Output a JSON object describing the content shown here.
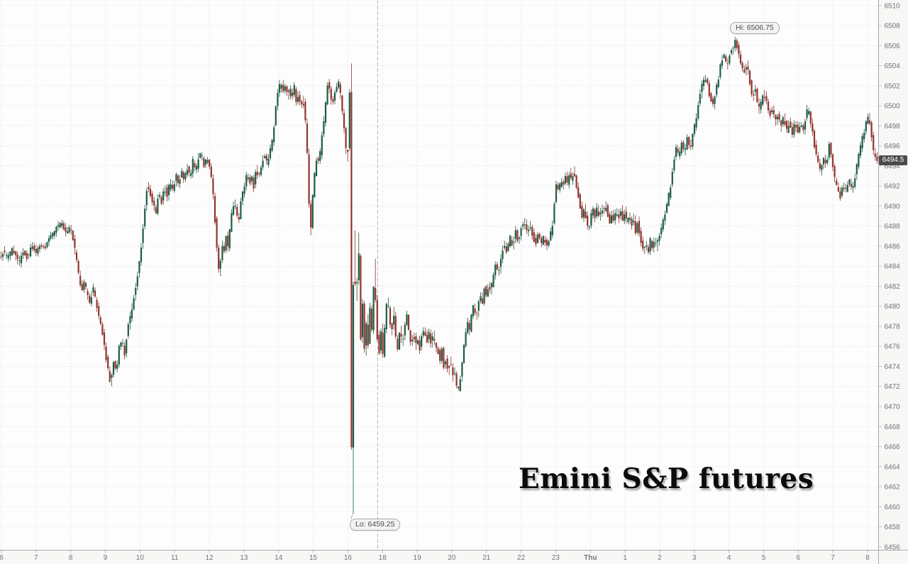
{
  "title": {
    "text": "Emini S&P futures"
  },
  "chart_data": {
    "type": "candlestick",
    "instrument": "Emini S&P futures",
    "x_axis": {
      "tick_labels": [
        "6",
        "7",
        "8",
        "9",
        "10",
        "11",
        "12",
        "13",
        "14",
        "15",
        "16",
        "18",
        "19",
        "20",
        "21",
        "22",
        "23",
        "Thu",
        "1",
        "2",
        "3",
        "4",
        "5",
        "6",
        "7",
        "8"
      ],
      "day_change_label": "Thu",
      "session_break_after_label": "16",
      "grid": true
    },
    "y_axis": {
      "min": 6456,
      "max": 6510,
      "step": 2,
      "tick_labels": [
        "6456",
        "6458",
        "6460",
        "6462",
        "6464",
        "6466",
        "6468",
        "6470",
        "6472",
        "6474",
        "6476",
        "6478",
        "6480",
        "6482",
        "6484",
        "6486",
        "6488",
        "6490",
        "6492",
        "6494",
        "6496",
        "6498",
        "6500",
        "6502",
        "6504",
        "6506",
        "6508",
        "6510"
      ],
      "grid": true
    },
    "annotations": {
      "high": {
        "label": "Hi: 6506.75",
        "value": 6506.75
      },
      "low": {
        "label": "Lo: 6459.25",
        "value": 6459.25
      },
      "last_price": {
        "label": "6494.5",
        "value": 6494.5
      }
    },
    "colors": {
      "up": "#1d5b45",
      "down": "#90342d",
      "grid": "#dcdcdc",
      "axis_text": "#737373",
      "axis_line": "#ababab",
      "axis_bg": "#f7f7f6",
      "plot_bg": "#fdfdfd",
      "session_break": "#b3b3b3",
      "badge_bg": "#f2f2f1",
      "badge_border": "#a9a9a9",
      "badge_text": "#4c4c4c",
      "last_price_bg": "#4a4a4a",
      "last_price_text": "#ffffff"
    },
    "price_path": [
      [
        0,
        6484.8
      ],
      [
        6,
        6485.4
      ],
      [
        12,
        6484.7
      ],
      [
        18,
        6485.7
      ],
      [
        24,
        6484.9
      ],
      [
        28,
        6484.3
      ],
      [
        34,
        6485.6
      ],
      [
        40,
        6484.8
      ],
      [
        46,
        6486.1
      ],
      [
        52,
        6485.4
      ],
      [
        58,
        6486.3
      ],
      [
        64,
        6485.6
      ],
      [
        70,
        6486.6
      ],
      [
        76,
        6487.2
      ],
      [
        82,
        6487.9
      ],
      [
        88,
        6488.3
      ],
      [
        94,
        6487.3
      ],
      [
        100,
        6488.0
      ],
      [
        104,
        6486.8
      ],
      [
        108,
        6485.0
      ],
      [
        112,
        6483.2
      ],
      [
        116,
        6481.6
      ],
      [
        120,
        6482.4
      ],
      [
        124,
        6481.2
      ],
      [
        128,
        6480.3
      ],
      [
        132,
        6481.9
      ],
      [
        136,
        6480.6
      ],
      [
        140,
        6478.9
      ],
      [
        144,
        6478.0
      ],
      [
        148,
        6476.2
      ],
      [
        152,
        6474.4
      ],
      [
        157,
        6472.3
      ],
      [
        161,
        6474.6
      ],
      [
        165,
        6473.4
      ],
      [
        169,
        6475.9
      ],
      [
        173,
        6476.6
      ],
      [
        177,
        6475.1
      ],
      [
        181,
        6477.8
      ],
      [
        185,
        6478.9
      ],
      [
        189,
        6480.6
      ],
      [
        193,
        6482.2
      ],
      [
        197,
        6484.0
      ],
      [
        201,
        6486.5
      ],
      [
        205,
        6489.5
      ],
      [
        209,
        6492.3
      ],
      [
        213,
        6491.2
      ],
      [
        217,
        6490.2
      ],
      [
        221,
        6489.4
      ],
      [
        225,
        6491.3
      ],
      [
        229,
        6490.4
      ],
      [
        233,
        6491.9
      ],
      [
        237,
        6490.9
      ],
      [
        241,
        6492.6
      ],
      [
        245,
        6491.5
      ],
      [
        249,
        6493.1
      ],
      [
        253,
        6492.2
      ],
      [
        257,
        6493.6
      ],
      [
        261,
        6492.5
      ],
      [
        265,
        6493.9
      ],
      [
        269,
        6492.8
      ],
      [
        273,
        6494.5
      ],
      [
        277,
        6493.5
      ],
      [
        281,
        6494.9
      ],
      [
        285,
        6495.2
      ],
      [
        289,
        6494.0
      ],
      [
        293,
        6494.8
      ],
      [
        297,
        6493.7
      ],
      [
        300,
        6492.5
      ],
      [
        303,
        6490.0
      ],
      [
        306,
        6486.8
      ],
      [
        309,
        6483.9
      ],
      [
        311,
        6483.4
      ],
      [
        314,
        6486.3
      ],
      [
        317,
        6485.2
      ],
      [
        320,
        6486.9
      ],
      [
        323,
        6485.7
      ],
      [
        326,
        6488.2
      ],
      [
        329,
        6489.9
      ],
      [
        332,
        6490.3
      ],
      [
        335,
        6489.1
      ],
      [
        338,
        6488.7
      ],
      [
        341,
        6490.6
      ],
      [
        344,
        6491.6
      ],
      [
        347,
        6492.5
      ],
      [
        350,
        6493.2
      ],
      [
        353,
        6492.1
      ],
      [
        356,
        6492.9
      ],
      [
        359,
        6491.9
      ],
      [
        362,
        6493.9
      ],
      [
        365,
        6493.0
      ],
      [
        368,
        6493.5
      ],
      [
        371,
        6494.6
      ],
      [
        374,
        6495.1
      ],
      [
        377,
        6494.3
      ],
      [
        380,
        6494.9
      ],
      [
        383,
        6495.8
      ],
      [
        386,
        6496.8
      ],
      [
        389,
        6499.2
      ],
      [
        392,
        6501.1
      ],
      [
        395,
        6501.9
      ],
      [
        398,
        6502.2
      ],
      [
        401,
        6501.3
      ],
      [
        404,
        6502.1
      ],
      [
        407,
        6500.7
      ],
      [
        410,
        6501.7
      ],
      [
        413,
        6500.9
      ],
      [
        416,
        6501.9
      ],
      [
        419,
        6500.4
      ],
      [
        422,
        6501.3
      ],
      [
        425,
        6499.9
      ],
      [
        428,
        6500.9
      ],
      [
        431,
        6499.1
      ],
      [
        434,
        6495.9
      ],
      [
        437,
        6489.8
      ],
      [
        439,
        6487.3
      ],
      [
        442,
        6490.9
      ],
      [
        445,
        6493.4
      ],
      [
        448,
        6494.9
      ],
      [
        451,
        6494.1
      ],
      [
        454,
        6496.4
      ],
      [
        457,
        6498.1
      ],
      [
        460,
        6499.9
      ],
      [
        463,
        6502.2
      ],
      [
        466,
        6501.4
      ],
      [
        469,
        6500.2
      ],
      [
        472,
        6500.9
      ],
      [
        475,
        6501.8
      ],
      [
        478,
        6502.4
      ],
      [
        481,
        6501.1
      ],
      [
        484,
        6499.3
      ],
      [
        487,
        6497.1
      ],
      [
        490,
        6494.6
      ],
      [
        493,
        6496.6
      ],
      [
        495,
        6505.2
      ],
      [
        496,
        6480.0
      ],
      [
        497,
        6459.6
      ],
      [
        498,
        6466.0
      ],
      [
        499,
        6480.0
      ],
      [
        500,
        6487.6
      ],
      [
        502,
        6482.0
      ],
      [
        504,
        6480.6
      ],
      [
        506,
        6487.8
      ],
      [
        508,
        6483.0
      ],
      [
        510,
        6475.6
      ],
      [
        512,
        6481.0
      ],
      [
        514,
        6477.0
      ],
      [
        516,
        6474.6
      ],
      [
        518,
        6479.4
      ],
      [
        520,
        6476.1
      ],
      [
        522,
        6480.4
      ],
      [
        525,
        6477.4
      ],
      [
        527,
        6479.0
      ],
      [
        529,
        6485.2
      ],
      [
        531,
        6479.4
      ],
      [
        533,
        6477.0
      ],
      [
        536,
        6475.3
      ],
      [
        539,
        6478.2
      ],
      [
        541,
        6474.9
      ],
      [
        544,
        6478.4
      ],
      [
        547,
        6480.8
      ],
      [
        550,
        6479.2
      ],
      [
        553,
        6477.2
      ],
      [
        556,
        6479.7
      ],
      [
        559,
        6476.9
      ],
      [
        562,
        6475.6
      ],
      [
        565,
        6477.8
      ],
      [
        568,
        6476.2
      ],
      [
        571,
        6477.6
      ],
      [
        575,
        6479.3
      ],
      [
        578,
        6477.1
      ],
      [
        581,
        6476.2
      ],
      [
        584,
        6477.4
      ],
      [
        587,
        6475.9
      ],
      [
        590,
        6476.8
      ],
      [
        593,
        6475.7
      ],
      [
        596,
        6477.1
      ],
      [
        600,
        6477.6
      ],
      [
        603,
        6476.4
      ],
      [
        606,
        6477.4
      ],
      [
        609,
        6476.2
      ],
      [
        612,
        6477.2
      ],
      [
        615,
        6475.7
      ],
      [
        618,
        6475.9
      ],
      [
        621,
        6474.4
      ],
      [
        624,
        6475.7
      ],
      [
        627,
        6473.9
      ],
      [
        630,
        6474.9
      ],
      [
        633,
        6473.4
      ],
      [
        636,
        6474.8
      ],
      [
        639,
        6472.9
      ],
      [
        642,
        6473.6
      ],
      [
        645,
        6471.9
      ],
      [
        648,
        6471.7
      ],
      [
        651,
        6473.3
      ],
      [
        654,
        6475.1
      ],
      [
        657,
        6477.1
      ],
      [
        660,
        6478.4
      ],
      [
        663,
        6477.4
      ],
      [
        666,
        6479.1
      ],
      [
        669,
        6480.1
      ],
      [
        672,
        6478.9
      ],
      [
        675,
        6479.8
      ],
      [
        678,
        6481.2
      ],
      [
        681,
        6480.3
      ],
      [
        684,
        6481.9
      ],
      [
        687,
        6481.0
      ],
      [
        690,
        6482.3
      ],
      [
        693,
        6481.5
      ],
      [
        696,
        6483.0
      ],
      [
        700,
        6484.2
      ],
      [
        704,
        6483.4
      ],
      [
        708,
        6485.1
      ],
      [
        712,
        6486.3
      ],
      [
        716,
        6485.4
      ],
      [
        720,
        6486.9
      ],
      [
        724,
        6486.0
      ],
      [
        728,
        6487.4
      ],
      [
        732,
        6486.4
      ],
      [
        736,
        6487.9
      ],
      [
        740,
        6488.6
      ],
      [
        744,
        6487.3
      ],
      [
        748,
        6488.3
      ],
      [
        752,
        6487.1
      ],
      [
        756,
        6486.2
      ],
      [
        760,
        6487.3
      ],
      [
        764,
        6486.1
      ],
      [
        768,
        6487.0
      ],
      [
        772,
        6485.9
      ],
      [
        776,
        6486.8
      ],
      [
        780,
        6488.2
      ],
      [
        783,
        6490.5
      ],
      [
        786,
        6492.4
      ],
      [
        789,
        6491.3
      ],
      [
        792,
        6492.9
      ],
      [
        795,
        6491.8
      ],
      [
        798,
        6493.2
      ],
      [
        801,
        6492.1
      ],
      [
        804,
        6493.4
      ],
      [
        807,
        6492.3
      ],
      [
        810,
        6493.6
      ],
      [
        813,
        6492.4
      ],
      [
        816,
        6491.2
      ],
      [
        819,
        6489.8
      ],
      [
        822,
        6488.9
      ],
      [
        825,
        6489.9
      ],
      [
        828,
        6488.3
      ],
      [
        831,
        6487.6
      ],
      [
        834,
        6488.9
      ],
      [
        837,
        6489.8
      ],
      [
        840,
        6488.7
      ],
      [
        843,
        6489.9
      ],
      [
        846,
        6488.8
      ],
      [
        849,
        6490.1
      ],
      [
        852,
        6489.2
      ],
      [
        855,
        6490.2
      ],
      [
        858,
        6489.0
      ],
      [
        861,
        6488.2
      ],
      [
        864,
        6489.4
      ],
      [
        867,
        6488.4
      ],
      [
        870,
        6489.7
      ],
      [
        873,
        6488.6
      ],
      [
        876,
        6489.8
      ],
      [
        879,
        6488.5
      ],
      [
        882,
        6489.6
      ],
      [
        885,
        6488.2
      ],
      [
        888,
        6489.3
      ],
      [
        891,
        6487.8
      ],
      [
        894,
        6488.9
      ],
      [
        897,
        6487.4
      ],
      [
        900,
        6488.5
      ],
      [
        903,
        6486.9
      ],
      [
        906,
        6486.1
      ],
      [
        909,
        6485.4
      ],
      [
        912,
        6486.4
      ],
      [
        915,
        6485.2
      ],
      [
        918,
        6486.6
      ],
      [
        921,
        6485.6
      ],
      [
        924,
        6486.9
      ],
      [
        927,
        6485.9
      ],
      [
        930,
        6486.9
      ],
      [
        934,
        6487.8
      ],
      [
        938,
        6489.2
      ],
      [
        942,
        6490.4
      ],
      [
        946,
        6491.8
      ],
      [
        950,
        6493.8
      ],
      [
        954,
        6495.9
      ],
      [
        958,
        6494.8
      ],
      [
        962,
        6496.4
      ],
      [
        966,
        6495.3
      ],
      [
        970,
        6496.9
      ],
      [
        974,
        6495.8
      ],
      [
        978,
        6497.1
      ],
      [
        982,
        6498.6
      ],
      [
        986,
        6500.3
      ],
      [
        990,
        6501.9
      ],
      [
        994,
        6502.7
      ],
      [
        998,
        6502.2
      ],
      [
        1002,
        6500.9
      ],
      [
        1006,
        6499.9
      ],
      [
        1010,
        6501.3
      ],
      [
        1014,
        6502.8
      ],
      [
        1018,
        6504.6
      ],
      [
        1022,
        6505.1
      ],
      [
        1026,
        6503.9
      ],
      [
        1030,
        6505.2
      ],
      [
        1034,
        6505.7
      ],
      [
        1038,
        6506.5
      ],
      [
        1042,
        6505.3
      ],
      [
        1046,
        6504.2
      ],
      [
        1050,
        6503.3
      ],
      [
        1054,
        6504.3
      ],
      [
        1058,
        6502.5
      ],
      [
        1062,
        6500.9
      ],
      [
        1066,
        6501.8
      ],
      [
        1070,
        6499.6
      ],
      [
        1074,
        6500.3
      ],
      [
        1078,
        6501.3
      ],
      [
        1082,
        6500.2
      ],
      [
        1086,
        6499.0
      ],
      [
        1090,
        6499.9
      ],
      [
        1094,
        6498.4
      ],
      [
        1098,
        6499.2
      ],
      [
        1102,
        6497.8
      ],
      [
        1106,
        6498.9
      ],
      [
        1110,
        6497.4
      ],
      [
        1114,
        6498.5
      ],
      [
        1118,
        6497.2
      ],
      [
        1122,
        6498.3
      ],
      [
        1126,
        6497.3
      ],
      [
        1130,
        6498.4
      ],
      [
        1134,
        6497.5
      ],
      [
        1138,
        6499.3
      ],
      [
        1141,
        6499.6
      ],
      [
        1145,
        6498.0
      ],
      [
        1150,
        6495.8
      ],
      [
        1154,
        6494.6
      ],
      [
        1158,
        6493.4
      ],
      [
        1162,
        6494.8
      ],
      [
        1166,
        6494.0
      ],
      [
        1170,
        6496.2
      ],
      [
        1174,
        6494.7
      ],
      [
        1178,
        6492.6
      ],
      [
        1182,
        6491.8
      ],
      [
        1186,
        6490.8
      ],
      [
        1190,
        6492.2
      ],
      [
        1194,
        6491.4
      ],
      [
        1198,
        6492.6
      ],
      [
        1202,
        6491.6
      ],
      [
        1206,
        6492.8
      ],
      [
        1210,
        6494.4
      ],
      [
        1214,
        6495.8
      ],
      [
        1218,
        6497.1
      ],
      [
        1222,
        6498.2
      ],
      [
        1226,
        6499.0
      ],
      [
        1229,
        6497.6
      ],
      [
        1232,
        6495.6
      ],
      [
        1236,
        6494.5
      ]
    ]
  }
}
